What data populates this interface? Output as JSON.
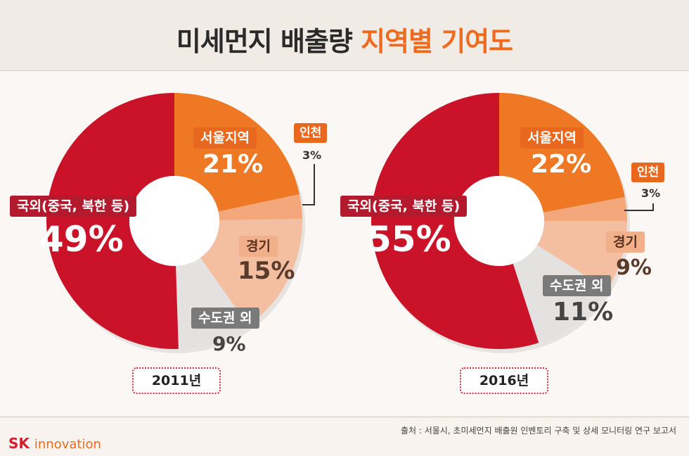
{
  "header": {
    "title_main": "미세먼지 배출량",
    "title_accent": "지역별 기여도"
  },
  "chart_data": [
    {
      "type": "pie",
      "title": "2011년",
      "categories": [
        "서울지역",
        "인천",
        "경기",
        "수도권 외",
        "국외(중국, 북한 등)"
      ],
      "values": [
        21,
        3,
        15,
        9,
        49
      ],
      "value_labels": [
        "21%",
        "3%",
        "15%",
        "9%",
        "49%"
      ],
      "colors": [
        "#ef7824",
        "#f3a77b",
        "#f4bea0",
        "#e4e2e0",
        "#ca1228"
      ]
    },
    {
      "type": "pie",
      "title": "2016년",
      "categories": [
        "서울지역",
        "인천",
        "경기",
        "수도권 외",
        "국외(중국, 북한 등)"
      ],
      "values": [
        22,
        3,
        9,
        11,
        55
      ],
      "value_labels": [
        "22%",
        "3%",
        "9%",
        "11%",
        "55%"
      ],
      "colors": [
        "#ef7824",
        "#f3a77b",
        "#f4bea0",
        "#e4e2e0",
        "#ca1228"
      ]
    }
  ],
  "footer": {
    "source": "출처 : 서울시, 초미세먼지 배출원 인벤토리 구축 및 상세 모니터링 연구 보고서",
    "logo_sk": "SK",
    "logo_innovation": "innovation"
  }
}
